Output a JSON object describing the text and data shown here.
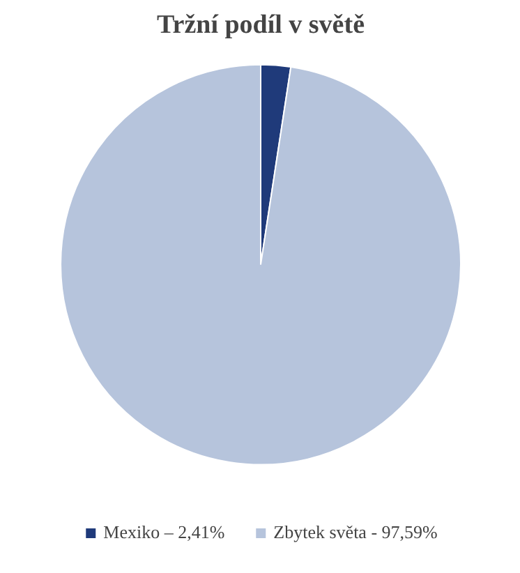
{
  "chart_data": {
    "type": "pie",
    "title": "Tržní podíl v světě",
    "categories": [
      "Mexiko – 2,41%",
      "Zbytek světa - 97,59%"
    ],
    "values": [
      2.41,
      97.59
    ],
    "colors": [
      "#1f3a7a",
      "#b6c4dc"
    ],
    "legend": "bottom"
  }
}
